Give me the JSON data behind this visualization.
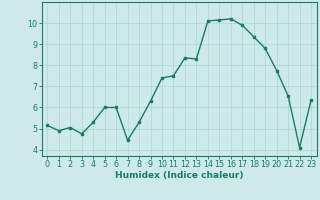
{
  "x": [
    0,
    1,
    2,
    3,
    4,
    5,
    6,
    7,
    8,
    9,
    10,
    11,
    12,
    13,
    14,
    15,
    16,
    17,
    18,
    19,
    20,
    21,
    22,
    23
  ],
  "y": [
    5.15,
    4.9,
    5.05,
    4.75,
    5.3,
    6.0,
    6.0,
    4.45,
    5.3,
    6.3,
    7.4,
    7.5,
    8.35,
    8.3,
    10.1,
    10.15,
    10.2,
    9.9,
    9.35,
    8.8,
    7.75,
    6.55,
    4.1,
    6.35
  ],
  "line_color": "#1a7a6e",
  "marker": "s",
  "marker_size": 1.8,
  "xlabel": "Humidex (Indice chaleur)",
  "xlim": [
    -0.5,
    23.5
  ],
  "ylim": [
    3.7,
    11.0
  ],
  "yticks": [
    4,
    5,
    6,
    7,
    8,
    9,
    10
  ],
  "xticks": [
    0,
    1,
    2,
    3,
    4,
    5,
    6,
    7,
    8,
    9,
    10,
    11,
    12,
    13,
    14,
    15,
    16,
    17,
    18,
    19,
    20,
    21,
    22,
    23
  ],
  "bg_color": "#ceeae8",
  "grid_color": "#afd4d1",
  "spine_color": "#1a7a6e",
  "xlabel_fontsize": 6.5,
  "tick_fontsize": 5.8,
  "line_width": 1.0
}
